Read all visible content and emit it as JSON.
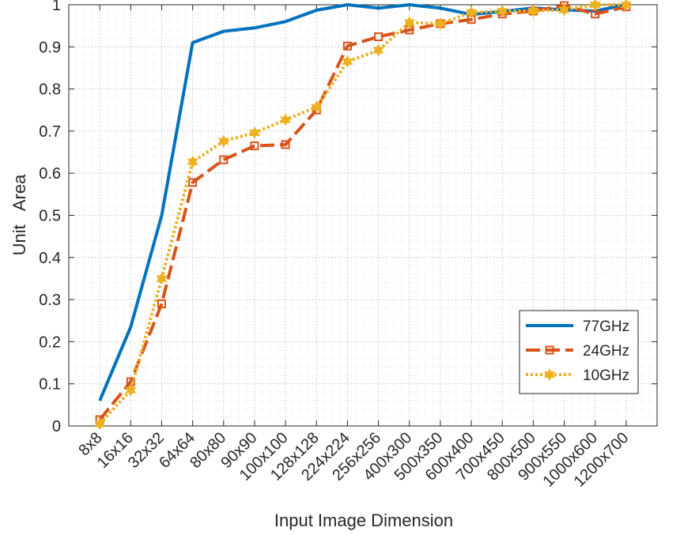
{
  "chart_data": {
    "type": "line",
    "title": "",
    "xlabel": "Input Image Dimension",
    "ylabel": "Unit   Area",
    "ylim": [
      0,
      1
    ],
    "yticks": [
      0,
      0.1,
      0.2,
      0.3,
      0.4,
      0.5,
      0.6,
      0.7,
      0.8,
      0.9,
      1
    ],
    "ytick_labels": [
      "0",
      "0.1",
      "0.2",
      "0.3",
      "0.4",
      "0.5",
      "0.6",
      "0.7",
      "0.8",
      "0.9",
      "1"
    ],
    "grid": "major and minor, dotted",
    "legend_position": "bottom-right",
    "categories": [
      "8x8",
      "16x16",
      "32x32",
      "64x64",
      "80x80",
      "90x90",
      "100x100",
      "128x128",
      "224x224",
      "256x256",
      "400x300",
      "500x350",
      "600x400",
      "700x450",
      "800x500",
      "900x550",
      "1000x600",
      "1200x700"
    ],
    "series": [
      {
        "name": "77GHz",
        "color": "#0072BD",
        "style": "solid",
        "marker": "none",
        "values": [
          0.06,
          0.235,
          0.5,
          0.91,
          0.937,
          0.945,
          0.96,
          0.987,
          1.0,
          0.992,
          1.0,
          0.992,
          0.977,
          0.984,
          0.992,
          0.988,
          0.985,
          1.0
        ]
      },
      {
        "name": "24GHz",
        "color": "#D95319",
        "style": "dashed",
        "marker": "square",
        "values": [
          0.015,
          0.105,
          0.29,
          0.578,
          0.632,
          0.665,
          0.668,
          0.75,
          0.902,
          0.924,
          0.94,
          0.955,
          0.965,
          0.978,
          0.985,
          0.998,
          0.978,
          0.995
        ]
      },
      {
        "name": "10GHz",
        "color": "#EDB120",
        "style": "dotted",
        "marker": "hexagram",
        "values": [
          0.005,
          0.085,
          0.35,
          0.627,
          0.676,
          0.696,
          0.727,
          0.757,
          0.865,
          0.892,
          0.958,
          0.955,
          0.982,
          0.985,
          0.985,
          0.988,
          1.0,
          1.0
        ]
      }
    ]
  }
}
